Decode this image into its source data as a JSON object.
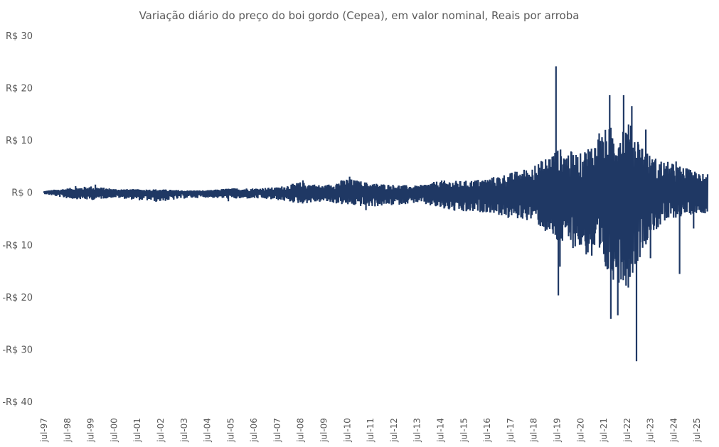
{
  "chart_data": {
    "type": "line",
    "title": "Variação diário do preço do boi gordo (Cepea), em valor nominal, Reais por arroba",
    "xlabel": "",
    "ylabel": "",
    "ylim": [
      -40,
      30
    ],
    "y_ticks": [
      30,
      20,
      10,
      0,
      -10,
      -20,
      -30,
      -40
    ],
    "y_tick_labels": [
      "R$ 30",
      "R$ 20",
      "R$ 10",
      "R$ 0",
      "-R$ 10",
      "-R$ 20",
      "-R$ 30",
      "-R$ 40"
    ],
    "x_range": [
      1997.5,
      2025.95
    ],
    "x_ticks": [
      1997.5,
      1998.5,
      1999.5,
      2000.5,
      2001.5,
      2002.5,
      2003.5,
      2004.5,
      2005.5,
      2006.5,
      2007.5,
      2008.5,
      2009.5,
      2010.5,
      2011.5,
      2012.5,
      2013.5,
      2014.5,
      2015.5,
      2016.5,
      2017.5,
      2018.5,
      2019.5,
      2020.5,
      2021.5,
      2022.5,
      2023.5,
      2024.5,
      2025.5
    ],
    "x_tick_labels": [
      "jul-97",
      "jul-98",
      "jul-99",
      "jul-00",
      "jul-01",
      "jul-02",
      "jul-03",
      "jul-04",
      "jul-05",
      "jul-06",
      "jul-07",
      "jul-08",
      "jul-09",
      "jul-10",
      "jul-11",
      "jul-12",
      "jul-13",
      "jul-14",
      "jul-15",
      "jul-16",
      "jul-17",
      "jul-18",
      "jul-19",
      "jul-20",
      "jul-21",
      "jul-22",
      "jul-23",
      "jul-24",
      "jul-25"
    ],
    "grid": false,
    "legend": "none",
    "line_color": "#1f3864",
    "envelope": {
      "x": [
        1997.5,
        1998.5,
        1999.5,
        2000.5,
        2001.5,
        2002.5,
        2003.5,
        2004.5,
        2005.5,
        2006.5,
        2007.5,
        2008.5,
        2009.5,
        2010.5,
        2011.5,
        2012.5,
        2013.5,
        2014.5,
        2015.5,
        2016.5,
        2017.5,
        2018.5,
        2019.5,
        2020.5,
        2021.5,
        2022.5,
        2023.5,
        2024.5,
        2025.5
      ],
      "upper": [
        0.3,
        0.8,
        1.2,
        0.7,
        0.6,
        0.6,
        0.4,
        0.4,
        0.8,
        0.8,
        1.0,
        2.0,
        1.3,
        2.7,
        1.8,
        1.5,
        1.3,
        2.3,
        2.2,
        2.7,
        3.8,
        5.0,
        8.5,
        7.5,
        12.0,
        14.0,
        7.0,
        5.5,
        4.0
      ],
      "lower": [
        -0.3,
        -1.2,
        -1.5,
        -1.0,
        -1.5,
        -1.8,
        -1.2,
        -1.0,
        -1.3,
        -1.2,
        -1.5,
        -2.2,
        -1.8,
        -2.5,
        -2.8,
        -2.5,
        -2.0,
        -3.2,
        -4.0,
        -3.8,
        -5.0,
        -5.5,
        -10.0,
        -11.0,
        -16.0,
        -18.0,
        -8.0,
        -5.0,
        -4.0
      ]
    },
    "spikes": [
      {
        "x": 1998.85,
        "y": 1.2
      },
      {
        "x": 1999.7,
        "y": 1.5
      },
      {
        "x": 2002.3,
        "y": -1.8
      },
      {
        "x": 2005.4,
        "y": -1.7
      },
      {
        "x": 2008.6,
        "y": 2.3
      },
      {
        "x": 2010.6,
        "y": 3.0
      },
      {
        "x": 2011.3,
        "y": -3.4
      },
      {
        "x": 2015.1,
        "y": -3.5
      },
      {
        "x": 2016.5,
        "y": -3.7
      },
      {
        "x": 2017.4,
        "y": -4.9
      },
      {
        "x": 2018.55,
        "y": 5.1
      },
      {
        "x": 2018.85,
        "y": -4.6
      },
      {
        "x": 2019.45,
        "y": 24.1
      },
      {
        "x": 2019.55,
        "y": -19.7
      },
      {
        "x": 2019.62,
        "y": -14.2
      },
      {
        "x": 2020.1,
        "y": 7.7
      },
      {
        "x": 2020.3,
        "y": -6.6
      },
      {
        "x": 2020.6,
        "y": -8.3
      },
      {
        "x": 2021.3,
        "y": 11.3
      },
      {
        "x": 2021.5,
        "y": -11.8
      },
      {
        "x": 2021.75,
        "y": 18.6
      },
      {
        "x": 2021.8,
        "y": -24.2
      },
      {
        "x": 2022.1,
        "y": -23.5
      },
      {
        "x": 2022.35,
        "y": 18.6
      },
      {
        "x": 2022.55,
        "y": -18.2
      },
      {
        "x": 2022.7,
        "y": 16.5
      },
      {
        "x": 2022.9,
        "y": -32.3
      },
      {
        "x": 2023.3,
        "y": 12.0
      },
      {
        "x": 2023.5,
        "y": -12.6
      },
      {
        "x": 2024.6,
        "y": 5.9
      },
      {
        "x": 2024.75,
        "y": -15.6
      },
      {
        "x": 2025.35,
        "y": -6.9
      },
      {
        "x": 2025.75,
        "y": 3.5
      },
      {
        "x": 2025.85,
        "y": 0.3
      }
    ]
  }
}
